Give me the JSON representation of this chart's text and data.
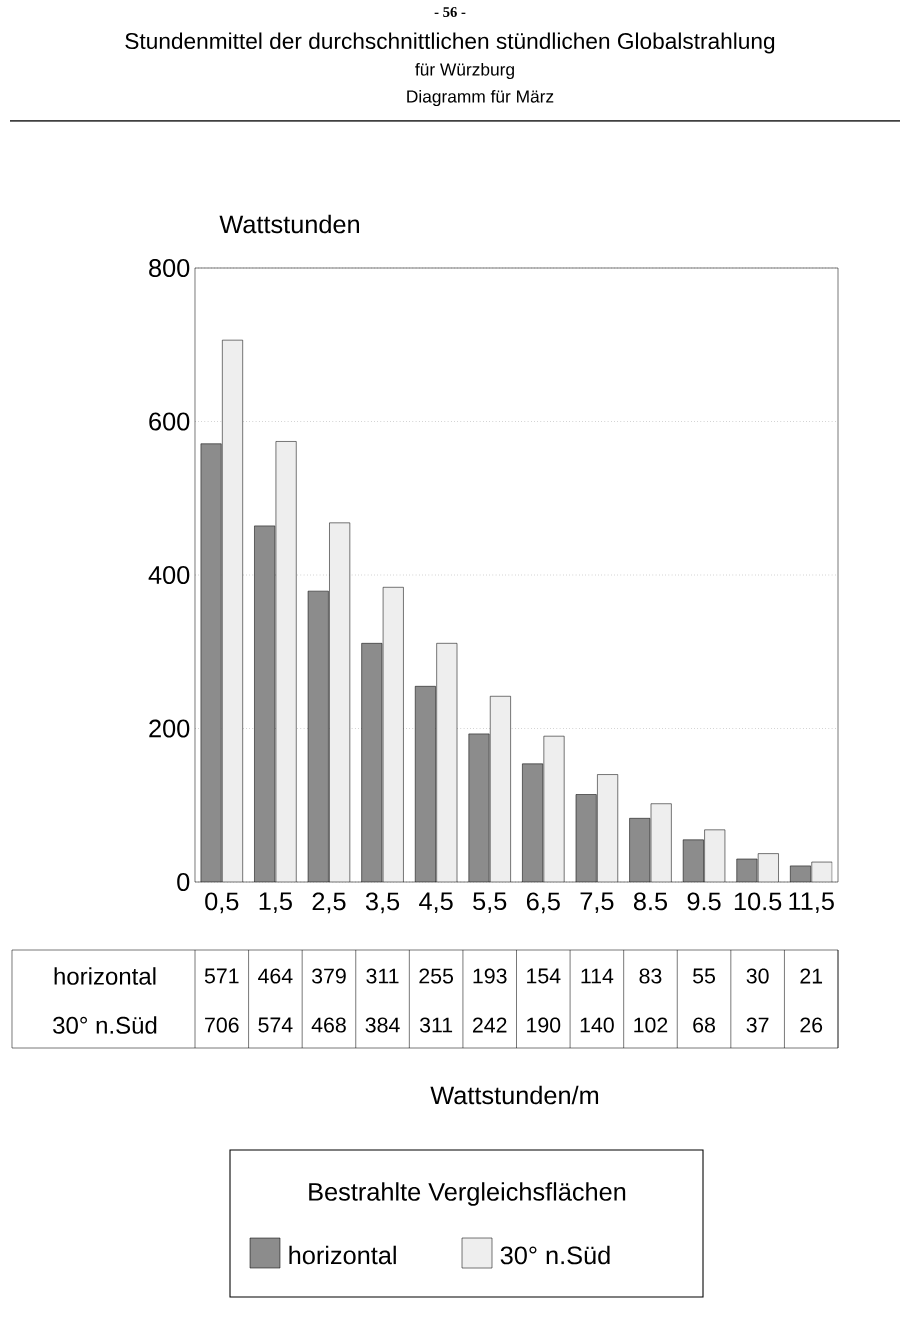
{
  "chart_data": {
    "type": "bar",
    "title": "Stundenmittel der durchschnittlichen stündlichen Globalstrahlung",
    "subtitle": "für Würzburg",
    "annotations": [
      "- 56 -",
      "Diagramm für März",
      "Wattstunden/m"
    ],
    "ylabel": "Wattstunden",
    "legend_title": "Bestrahlte Vergleichsflächen",
    "legend": "bottom",
    "grid": "y",
    "categories": [
      "0,5",
      "1,5",
      "2,5",
      "3,5",
      "4,5",
      "5,5",
      "6,5",
      "7,5",
      "8.5",
      "9.5",
      "10.5",
      "11,5"
    ],
    "series": [
      {
        "name": "horizontal",
        "color": "#8c8c8c",
        "values": [
          571,
          464,
          379,
          311,
          255,
          193,
          154,
          114,
          83,
          55,
          30,
          21
        ],
        "value_labels": [
          "571",
          "464",
          "379",
          "311",
          "255",
          "193",
          "154",
          "114",
          "83",
          "55",
          "30",
          "21"
        ]
      },
      {
        "name": "30° n.Süd",
        "color": "#eeeeee",
        "values": [
          706,
          574,
          468,
          384,
          311,
          242,
          190,
          140,
          102,
          68,
          37,
          26
        ],
        "value_labels": [
          "706",
          "574",
          "468",
          "384",
          "311",
          "242",
          "190",
          "140",
          "102",
          "68",
          "37",
          "26"
        ]
      }
    ],
    "ylim": [
      0,
      800
    ],
    "yticks": [
      0,
      200,
      400,
      600,
      800
    ]
  }
}
